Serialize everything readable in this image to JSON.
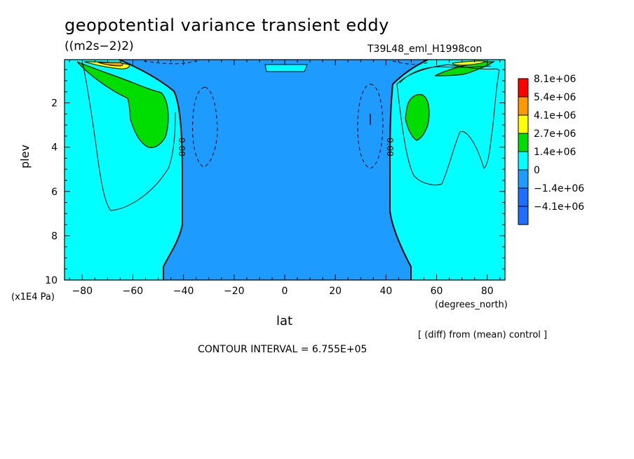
{
  "title": "geopotential variance transient eddy",
  "units": "((m2s−2)2)",
  "run_label": "T39L48_eml_H1998con",
  "ylabel": "plev",
  "yunits": "(x1E4 Pa)",
  "xlabel": "lat",
  "xunits": "(degrees_north)",
  "diff_note": "[ (diff) from (mean) control ]",
  "contour_interval": "CONTOUR INTERVAL = 6.755E+05",
  "chart_data": {
    "type": "contour",
    "title": "geopotential variance transient eddy",
    "xlabel": "lat",
    "ylabel": "plev",
    "xlim": [
      -87,
      87
    ],
    "ylim": [
      10,
      0.05
    ],
    "xticks": [
      -80,
      -60,
      -40,
      -20,
      0,
      20,
      40,
      60,
      80
    ],
    "yticks": [
      2,
      4,
      6,
      8,
      10
    ],
    "zero_contour_labels": [
      {
        "text": "0.00",
        "lat": -41,
        "plev": 4.0
      },
      {
        "text": "0.00",
        "lat": 42,
        "plev": 4.0
      }
    ],
    "legend": {
      "placement": "right",
      "levels": [
        {
          "label": "8.1e+06",
          "color": "#ff0000"
        },
        {
          "label": "5.4e+06",
          "color": "#ff9900"
        },
        {
          "label": "4.1e+06",
          "color": "#ffff00"
        },
        {
          "label": "2.7e+06",
          "color": "#00dd00"
        },
        {
          "label": "1.4e+06",
          "color": "#00ffff"
        },
        {
          "label": "0",
          "color": "#1e9bff"
        },
        {
          "label": "−1.4e+06",
          "color": "#1e6eff"
        },
        {
          "label": "−4.1e+06",
          "color": "#1e6eff"
        }
      ]
    }
  }
}
